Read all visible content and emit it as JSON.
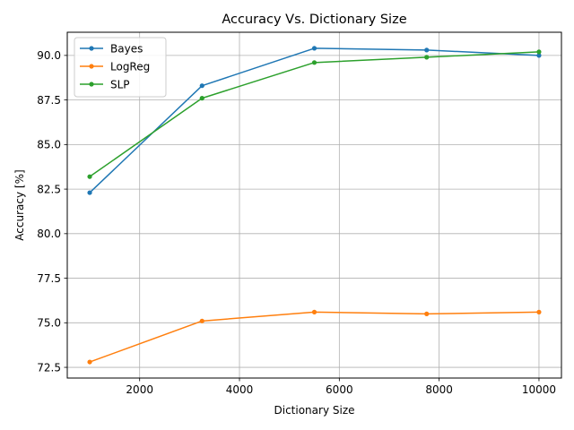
{
  "chart_data": {
    "type": "line",
    "title": "Accuracy Vs. Dictionary Size",
    "xlabel": "Dictionary Size",
    "ylabel": "Accuracy [%]",
    "x": [
      1000,
      3250,
      5500,
      7750,
      10000
    ],
    "xlim": [
      550,
      10450
    ],
    "ylim": [
      71.9,
      91.3
    ],
    "xticks": [
      2000,
      4000,
      6000,
      8000,
      10000
    ],
    "yticks": [
      72.5,
      75.0,
      77.5,
      80.0,
      82.5,
      85.0,
      87.5,
      90.0
    ],
    "grid": true,
    "legend_position": "top-left",
    "series": [
      {
        "name": "Bayes",
        "color": "#1f77b4",
        "values": [
          82.3,
          88.3,
          90.4,
          90.3,
          90.0
        ]
      },
      {
        "name": "LogReg",
        "color": "#ff7f0e",
        "values": [
          72.8,
          75.1,
          75.6,
          75.5,
          75.6
        ]
      },
      {
        "name": "SLP",
        "color": "#2ca02c",
        "values": [
          83.2,
          87.6,
          89.6,
          89.9,
          90.2
        ]
      }
    ]
  }
}
